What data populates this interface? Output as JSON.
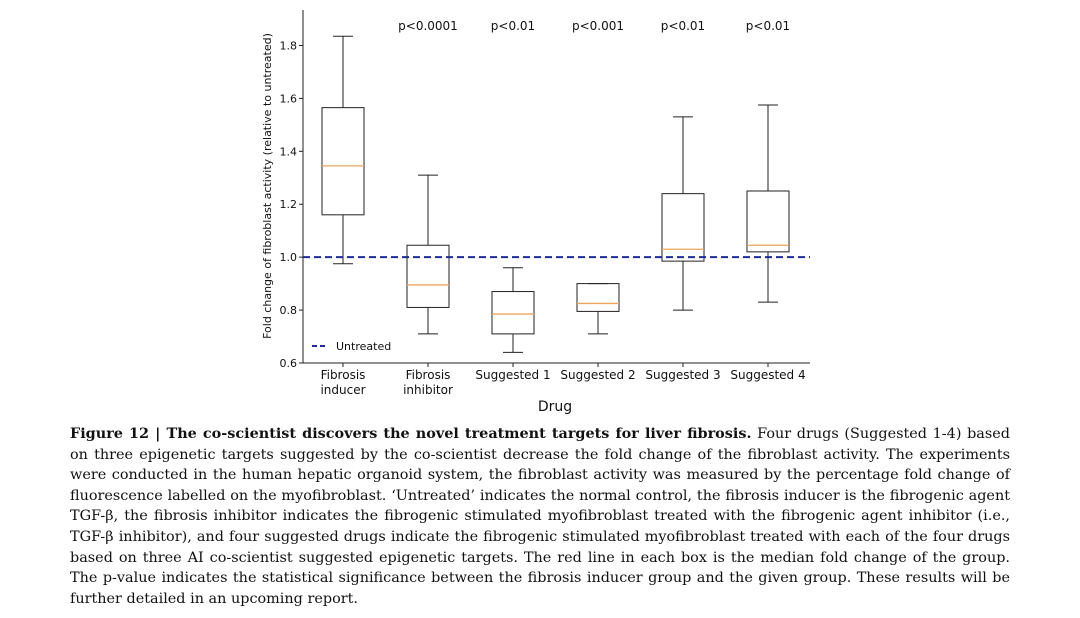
{
  "chart_data": {
    "type": "box",
    "xlabel": "Drug",
    "ylabel": "Fold change of fibroblast activity (relative to untreated)",
    "ylim": [
      0.6,
      1.9
    ],
    "yticks": [
      "0.6",
      "0.8",
      "1.0",
      "1.2",
      "1.4",
      "1.6",
      "1.8"
    ],
    "grid": false,
    "legend": {
      "placement": "lower-left",
      "entries": [
        {
          "label": "Untreated",
          "style": "dashed",
          "color": "#1f2a9c"
        }
      ]
    },
    "reference_line": {
      "label": "Untreated",
      "y": 1.0,
      "color": "#1f2a9c"
    },
    "median_color": "#e8a55c",
    "box_color": "#222222",
    "groups": [
      {
        "label_lines": [
          "Fibrosis",
          "inducer"
        ],
        "whisker_low": 0.975,
        "q1": 1.16,
        "median": 1.345,
        "q3": 1.565,
        "whisker_high": 1.835,
        "pvalue": ""
      },
      {
        "label_lines": [
          "Fibrosis",
          "inhibitor"
        ],
        "whisker_low": 0.71,
        "q1": 0.81,
        "median": 0.895,
        "q3": 1.045,
        "whisker_high": 1.31,
        "pvalue": "p<0.0001"
      },
      {
        "label_lines": [
          "Suggested 1"
        ],
        "whisker_low": 0.64,
        "q1": 0.71,
        "median": 0.785,
        "q3": 0.87,
        "whisker_high": 0.96,
        "pvalue": "p<0.01"
      },
      {
        "label_lines": [
          "Suggested 2"
        ],
        "whisker_low": 0.71,
        "q1": 0.795,
        "median": 0.825,
        "q3": 0.9,
        "whisker_high": 0.9,
        "pvalue": "p<0.001"
      },
      {
        "label_lines": [
          "Suggested 3"
        ],
        "whisker_low": 0.8,
        "q1": 0.985,
        "median": 1.03,
        "q3": 1.24,
        "whisker_high": 1.53,
        "pvalue": "p<0.01"
      },
      {
        "label_lines": [
          "Suggested 4"
        ],
        "whisker_low": 0.83,
        "q1": 1.02,
        "median": 1.045,
        "q3": 1.25,
        "whisker_high": 1.575,
        "pvalue": "p<0.01"
      }
    ]
  },
  "caption": {
    "label": "Figure 12 | The co-scientist discovers the novel treatment targets for liver fibrosis.",
    "text": " Four drugs (Suggested 1-4) based on three epigenetic targets suggested by the co-scientist decrease the fold change of the fibroblast activity. The experiments were conducted in the human hepatic organoid system, the fibroblast activity was measured by the percentage fold change of fluorescence labelled on the myofibroblast. ‘Untreated’ indicates the normal control, the fibrosis inducer is the fibrogenic agent TGF-β, the fibrosis inhibitor indicates the fibrogenic stimulated myofibroblast treated with the fibrogenic agent inhibitor (i.e., TGF-β inhibitor), and four suggested drugs indicate the fibrogenic stimulated myofibroblast treated with each of the four drugs based on three AI co-scientist suggested epigenetic targets. The red line in each box is the median fold change of the group. The p-value indicates the statistical significance between the fibrosis inducer group and the given group. These results will be further detailed in an upcoming report."
  }
}
